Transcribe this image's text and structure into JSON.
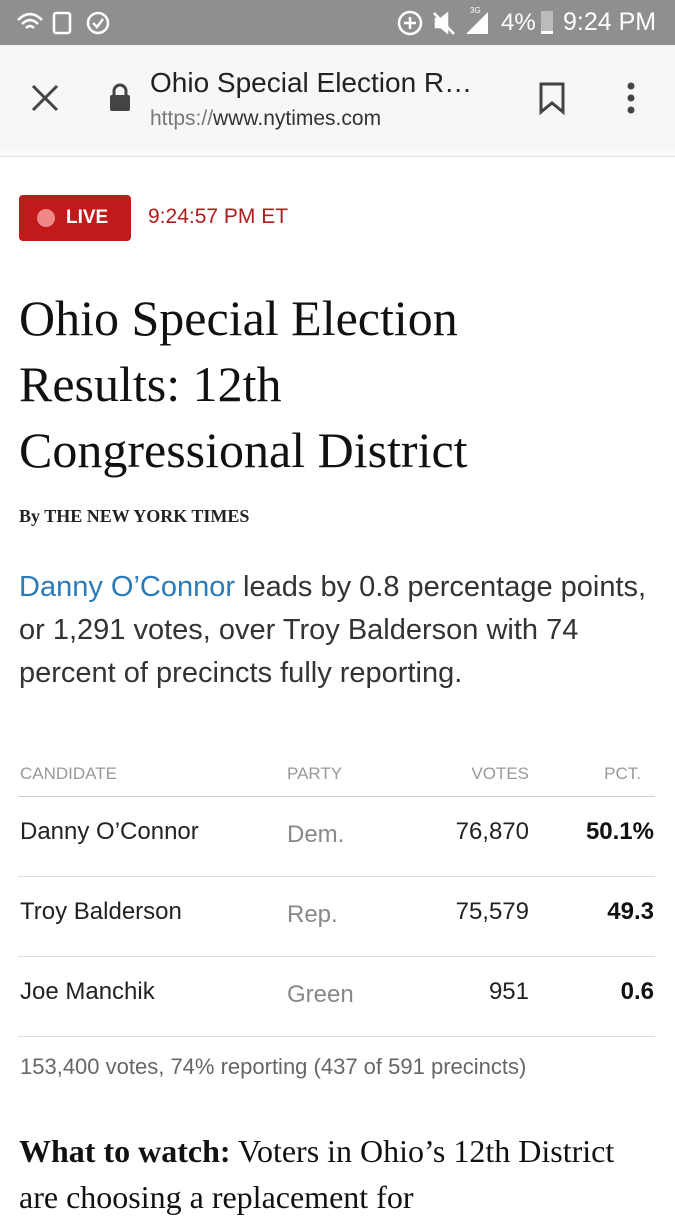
{
  "status_bar": {
    "network": "3G",
    "battery": "4%",
    "time": "9:24 PM"
  },
  "browser_bar": {
    "title": "Ohio Special Election R…",
    "url_scheme": "https://",
    "url_host": "www.nytimes.com"
  },
  "live": {
    "badge": "LIVE",
    "time": "9:24:57 PM ET"
  },
  "article": {
    "headline": "Ohio Special Election Results: 12th Congressional District",
    "byline_prefix": "By",
    "byline": "THE NEW YORK TIMES",
    "summary_link": "Danny O’Connor",
    "summary_rest": " leads by 0.8 percentage points, or 1,291 votes, over Troy Balderson with 74 percent of precincts fully reporting.",
    "watch_label": "What to watch:",
    "watch_text": " Voters in Ohio’s 12th District are choosing a replacement for"
  },
  "table": {
    "headers": [
      "CANDIDATE",
      "PARTY",
      "VOTES",
      "PCT."
    ],
    "rows": [
      [
        "Danny O’Connor",
        "Dem.",
        "76,870",
        "50.1%"
      ],
      [
        "Troy Balderson",
        "Rep.",
        "75,579",
        "49.3"
      ],
      [
        "Joe Manchik",
        "Green",
        "951",
        "0.6"
      ]
    ],
    "footer": "153,400 votes, 74% reporting (437 of 591 precincts)"
  }
}
